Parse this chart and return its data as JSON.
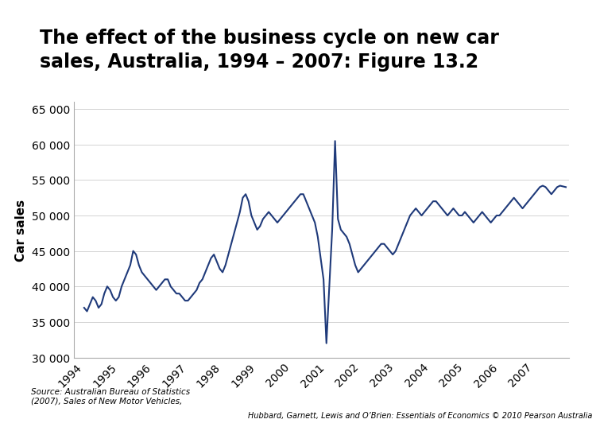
{
  "title": "The effect of the business cycle on new car\nsales, Australia, 1994 – 2007: Figure 13.2",
  "title_bg_color": "#F5A623",
  "ylabel": "Car sales",
  "ylim": [
    30000,
    66000
  ],
  "yticks": [
    30000,
    35000,
    40000,
    45000,
    50000,
    55000,
    60000,
    65000
  ],
  "line_color": "#1F3A7A",
  "line_width": 1.5,
  "source_text": "Source: Australian Bureau of Statistics\n(2007), Sales of New Motor Vehicles,",
  "right_text": "Hubbard, Garnett, Lewis and O’Brien: Essentials of Economics © 2010 Pearson Australia",
  "x_values": [
    1994.0,
    1994.083,
    1994.167,
    1994.25,
    1994.333,
    1994.417,
    1994.5,
    1994.583,
    1994.667,
    1994.75,
    1994.833,
    1994.917,
    1995.0,
    1995.083,
    1995.167,
    1995.25,
    1995.333,
    1995.417,
    1995.5,
    1995.583,
    1995.667,
    1995.75,
    1995.833,
    1995.917,
    1996.0,
    1996.083,
    1996.167,
    1996.25,
    1996.333,
    1996.417,
    1996.5,
    1996.583,
    1996.667,
    1996.75,
    1996.833,
    1996.917,
    1997.0,
    1997.083,
    1997.167,
    1997.25,
    1997.333,
    1997.417,
    1997.5,
    1997.583,
    1997.667,
    1997.75,
    1997.833,
    1997.917,
    1998.0,
    1998.083,
    1998.167,
    1998.25,
    1998.333,
    1998.417,
    1998.5,
    1998.583,
    1998.667,
    1998.75,
    1998.833,
    1998.917,
    1999.0,
    1999.083,
    1999.167,
    1999.25,
    1999.333,
    1999.417,
    1999.5,
    1999.583,
    1999.667,
    1999.75,
    1999.833,
    1999.917,
    2000.0,
    2000.083,
    2000.167,
    2000.25,
    2000.333,
    2000.417,
    2000.5,
    2000.583,
    2000.667,
    2000.75,
    2000.833,
    2000.917,
    2001.0,
    2001.083,
    2001.167,
    2001.25,
    2001.333,
    2001.417,
    2001.5,
    2001.583,
    2001.667,
    2001.75,
    2001.833,
    2001.917,
    2002.0,
    2002.083,
    2002.167,
    2002.25,
    2002.333,
    2002.417,
    2002.5,
    2002.583,
    2002.667,
    2002.75,
    2002.833,
    2002.917,
    2003.0,
    2003.083,
    2003.167,
    2003.25,
    2003.333,
    2003.417,
    2003.5,
    2003.583,
    2003.667,
    2003.75,
    2003.833,
    2003.917,
    2004.0,
    2004.083,
    2004.167,
    2004.25,
    2004.333,
    2004.417,
    2004.5,
    2004.583,
    2004.667,
    2004.75,
    2004.833,
    2004.917,
    2005.0,
    2005.083,
    2005.167,
    2005.25,
    2005.333,
    2005.417,
    2005.5,
    2005.583,
    2005.667,
    2005.75,
    2005.833,
    2005.917,
    2006.0,
    2006.083,
    2006.167,
    2006.25,
    2006.333,
    2006.417,
    2006.5,
    2006.583,
    2006.667,
    2006.75,
    2006.833,
    2006.917,
    2007.0,
    2007.083,
    2007.167,
    2007.25,
    2007.333,
    2007.417,
    2007.5,
    2007.583,
    2007.667,
    2007.75,
    2007.833,
    2007.917
  ],
  "y_values": [
    37000,
    36500,
    37500,
    38500,
    38000,
    37000,
    37500,
    39000,
    40000,
    39500,
    38500,
    38000,
    38500,
    40000,
    41000,
    42000,
    43000,
    45000,
    44500,
    43000,
    42000,
    41500,
    41000,
    40500,
    40000,
    39500,
    40000,
    40500,
    41000,
    41000,
    40000,
    39500,
    39000,
    39000,
    38500,
    38000,
    38000,
    38500,
    39000,
    39500,
    40500,
    41000,
    42000,
    43000,
    44000,
    44500,
    43500,
    42500,
    42000,
    43000,
    44500,
    46000,
    47500,
    49000,
    50500,
    52500,
    53000,
    52000,
    50000,
    49000,
    48000,
    48500,
    49500,
    50000,
    50500,
    50000,
    49500,
    49000,
    49500,
    50000,
    50500,
    51000,
    51500,
    52000,
    52500,
    53000,
    53000,
    52000,
    51000,
    50000,
    49000,
    47000,
    44000,
    41000,
    32000,
    40000,
    48000,
    60500,
    49500,
    48000,
    47500,
    47000,
    46000,
    44500,
    43000,
    42000,
    42500,
    43000,
    43500,
    44000,
    44500,
    45000,
    45500,
    46000,
    46000,
    45500,
    45000,
    44500,
    45000,
    46000,
    47000,
    48000,
    49000,
    50000,
    50500,
    51000,
    50500,
    50000,
    50500,
    51000,
    51500,
    52000,
    52000,
    51500,
    51000,
    50500,
    50000,
    50500,
    51000,
    50500,
    50000,
    50000,
    50500,
    50000,
    49500,
    49000,
    49500,
    50000,
    50500,
    50000,
    49500,
    49000,
    49500,
    50000,
    50000,
    50500,
    51000,
    51500,
    52000,
    52500,
    52000,
    51500,
    51000,
    51500,
    52000,
    52500,
    53000,
    53500,
    54000,
    54200,
    54000,
    53500,
    53000,
    53500,
    54000,
    54200,
    54100,
    54000
  ]
}
